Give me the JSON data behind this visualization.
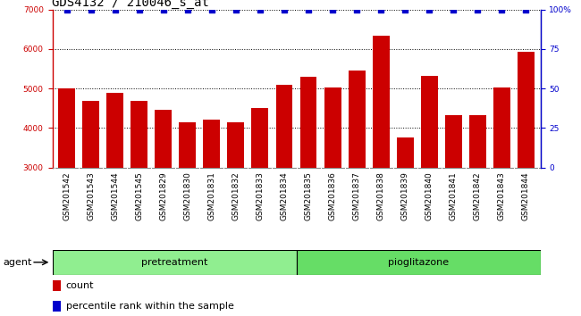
{
  "title": "GDS4132 / 210046_s_at",
  "samples": [
    "GSM201542",
    "GSM201543",
    "GSM201544",
    "GSM201545",
    "GSM201829",
    "GSM201830",
    "GSM201831",
    "GSM201832",
    "GSM201833",
    "GSM201834",
    "GSM201835",
    "GSM201836",
    "GSM201837",
    "GSM201838",
    "GSM201839",
    "GSM201840",
    "GSM201841",
    "GSM201842",
    "GSM201843",
    "GSM201844"
  ],
  "counts": [
    5000,
    4680,
    4880,
    4680,
    4450,
    4150,
    4220,
    4150,
    4500,
    5100,
    5300,
    5020,
    5450,
    6340,
    3760,
    5320,
    4330,
    4330,
    5020,
    5920
  ],
  "percentile": [
    100,
    100,
    100,
    100,
    100,
    100,
    100,
    100,
    100,
    100,
    100,
    100,
    100,
    100,
    100,
    100,
    100,
    100,
    100,
    100
  ],
  "bar_color": "#cc0000",
  "pct_color": "#0000cc",
  "ylim_left": [
    3000,
    7000
  ],
  "ylim_right": [
    0,
    100
  ],
  "yticks_left": [
    3000,
    4000,
    5000,
    6000,
    7000
  ],
  "yticks_right": [
    0,
    25,
    50,
    75,
    100
  ],
  "grid_dotted": [
    4000,
    5000,
    6000,
    7000
  ],
  "pretreatment_indices": [
    0,
    9
  ],
  "pioglitazone_indices": [
    10,
    19
  ],
  "group_pretreatment": "pretreatment",
  "group_pioglitazone": "pioglitazone",
  "group_color_pre": "#90ee90",
  "group_color_pio": "#66dd66",
  "agent_label": "agent",
  "legend_count": "count",
  "legend_pct": "percentile rank within the sample",
  "bar_color_red": "#cc0000",
  "pct_marker_color": "#0000cc",
  "tick_bg_color": "#c0c0c0",
  "title_fontsize": 10,
  "tick_fontsize": 6.5,
  "label_fontsize": 8,
  "group_fontsize": 8
}
